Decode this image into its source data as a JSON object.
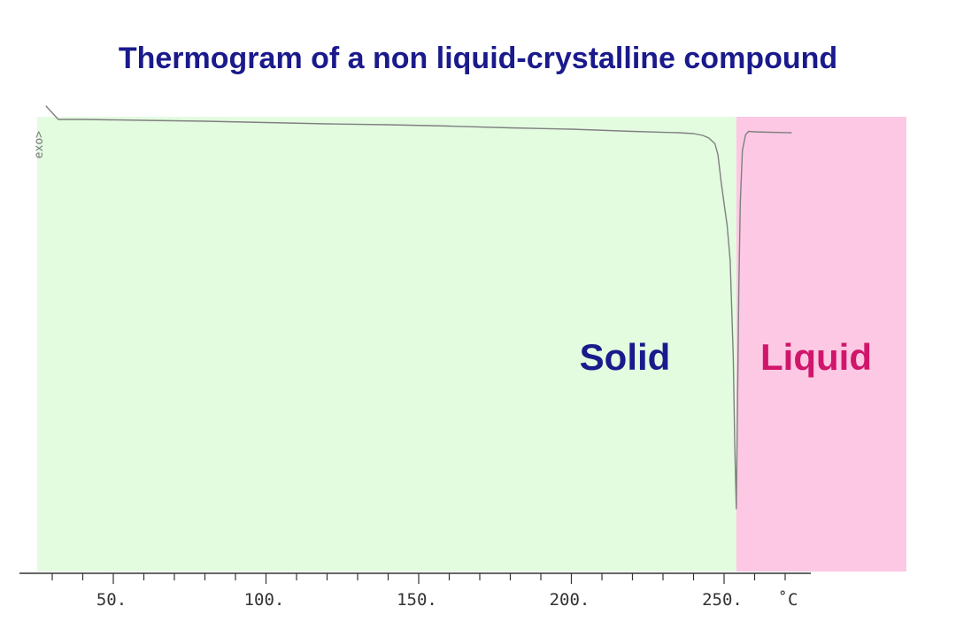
{
  "title": "Thermogram of a non liquid-crystalline compound",
  "colors": {
    "title": "#1a1a8c",
    "solid_region": "#e3fce0",
    "liquid_region": "#fdc8e4",
    "solid_label": "#1a1a8c",
    "liquid_label": "#d0166a",
    "trace": "#808080",
    "axis": "#333333"
  },
  "chart_data": {
    "type": "line",
    "title": "Thermogram of a non liquid-crystalline compound",
    "xlabel": "",
    "ylabel": "",
    "x_unit": "˚C",
    "exo_marker": "exo>",
    "xlim": [
      22,
      300
    ],
    "ylim": [
      0,
      1
    ],
    "grid": false,
    "x_ticks": [
      {
        "value": 50,
        "label": "50."
      },
      {
        "value": 100,
        "label": "100."
      },
      {
        "value": 150,
        "label": "150."
      },
      {
        "value": 200,
        "label": "200."
      },
      {
        "value": 250,
        "label": "250."
      }
    ],
    "regions": [
      {
        "label": "Solid",
        "from": 25,
        "to": 254
      },
      {
        "label": "Liquid",
        "from": 254,
        "to": 310
      }
    ],
    "series": [
      {
        "x": [
          28,
          30,
          32,
          40,
          60,
          80,
          100,
          120,
          140,
          160,
          180,
          200,
          220,
          235,
          240,
          243,
          245,
          247,
          248,
          249,
          250,
          251,
          252,
          253,
          253.5,
          254,
          254.4,
          254.8,
          255.3,
          256,
          257,
          258,
          260,
          265,
          272
        ],
        "y": [
          0.97,
          0.955,
          0.94,
          0.94,
          0.938,
          0.936,
          0.933,
          0.93,
          0.928,
          0.925,
          0.921,
          0.918,
          0.913,
          0.91,
          0.908,
          0.904,
          0.898,
          0.885,
          0.86,
          0.8,
          0.75,
          0.7,
          0.62,
          0.4,
          0.2,
          0.06,
          0.3,
          0.55,
          0.75,
          0.87,
          0.905,
          0.913,
          0.912,
          0.911,
          0.91
        ]
      }
    ]
  }
}
